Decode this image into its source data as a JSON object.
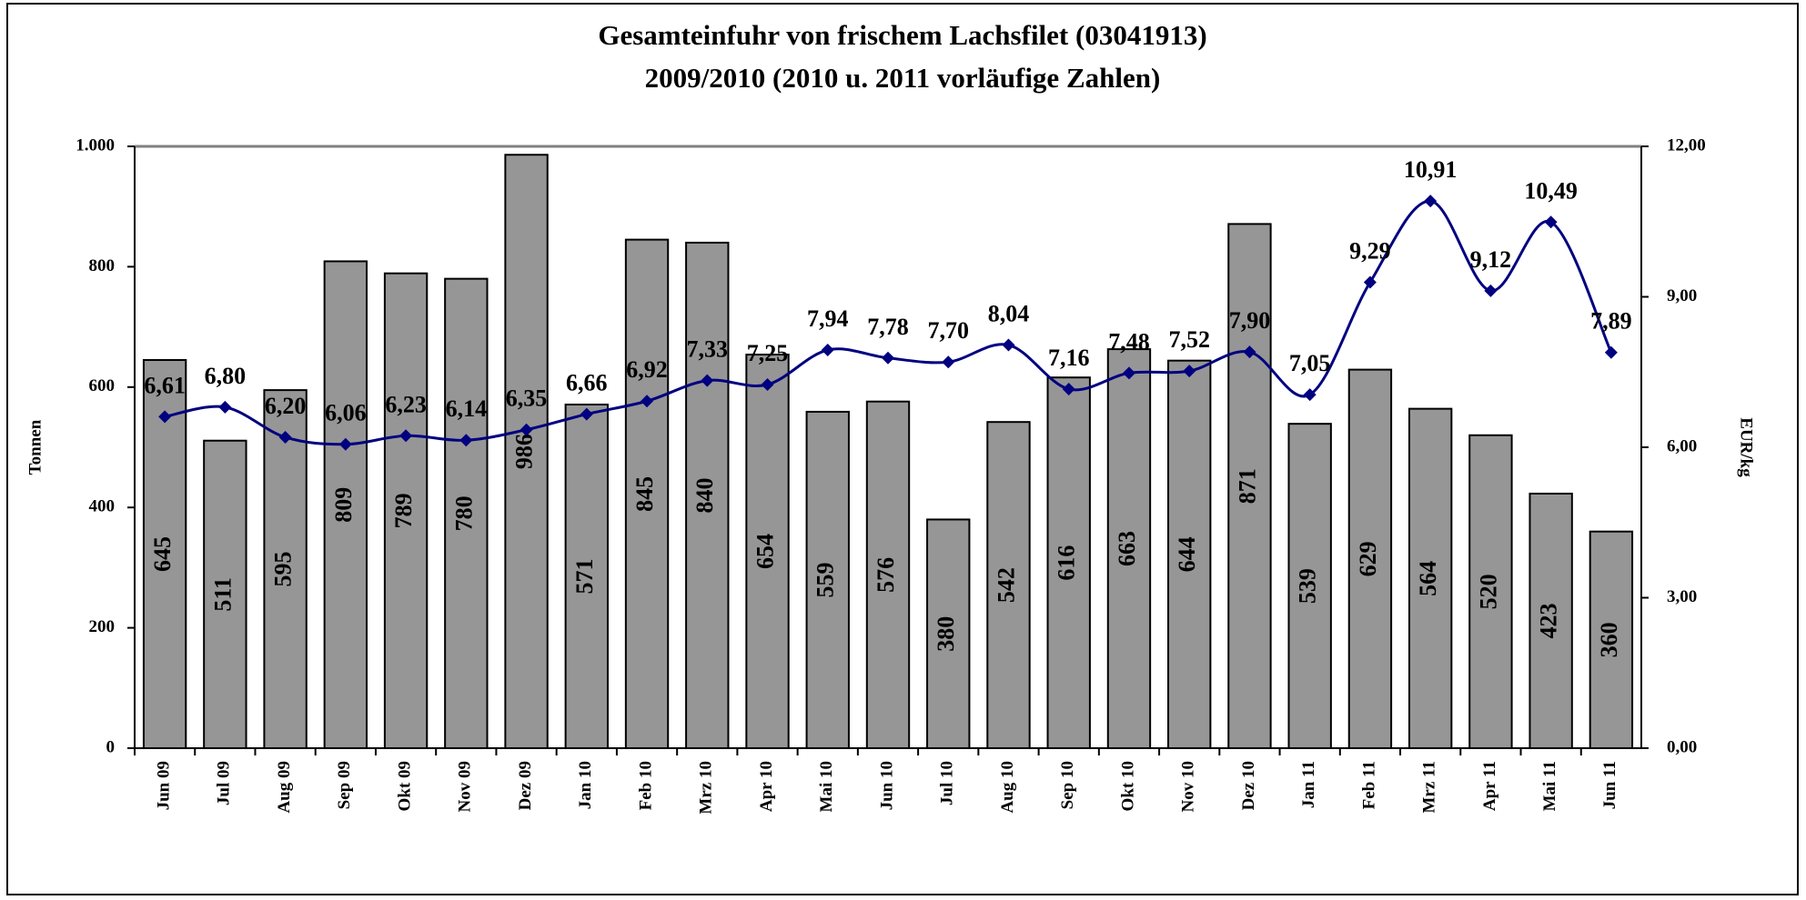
{
  "chart_data": {
    "type": "bar",
    "title": "Gesamteinfuhr von frischem Lachsfilet (03041913)",
    "subtitle": "2009/2010 (2010 u. 2011 vorläufige Zahlen)",
    "y_label": "Tonnen",
    "y2_label": "EUR/kg",
    "categories": [
      "Jun 09",
      "Jul 09",
      "Aug 09",
      "Sep 09",
      "Okt 09",
      "Nov 09",
      "Dez 09",
      "Jan 10",
      "Feb 10",
      "Mrz 10",
      "Apr 10",
      "Mai 10",
      "Jun 10",
      "Jul 10",
      "Aug 10",
      "Sep 10",
      "Okt 10",
      "Nov 10",
      "Dez 10",
      "Jan 11",
      "Feb 11",
      "Mrz 11",
      "Apr 11",
      "Mai 11",
      "Jun 11"
    ],
    "series": [
      {
        "type": "bar",
        "color": "#969696",
        "values": [
          645,
          511,
          595,
          809,
          789,
          780,
          986,
          571,
          845,
          840,
          654,
          559,
          576,
          380,
          542,
          616,
          663,
          644,
          871,
          539,
          629,
          564,
          520,
          423,
          360
        ]
      },
      {
        "type": "line",
        "axis": "y2",
        "color": "#000080",
        "values": [
          6.61,
          6.8,
          6.2,
          6.06,
          6.23,
          6.14,
          6.35,
          6.66,
          6.92,
          7.33,
          7.25,
          7.94,
          7.78,
          7.7,
          8.04,
          7.16,
          7.48,
          7.52,
          7.9,
          7.05,
          9.29,
          10.91,
          9.12,
          10.49,
          7.89
        ],
        "value_labels": [
          "6,61",
          "6,80",
          "6,20",
          "6,06",
          "6,23",
          "6,14",
          "6,35",
          "6,66",
          "6,92",
          "7,33",
          "7,25",
          "7,94",
          "7,78",
          "7,70",
          "8,04",
          "7,16",
          "7,48",
          "7,52",
          "7,90",
          "7,05",
          "9,29",
          "10,91",
          "9,12",
          "10,49",
          "7,89"
        ]
      }
    ],
    "ylim": [
      0,
      1000
    ],
    "yticks": [
      0,
      200,
      400,
      600,
      800,
      {
        "value": 1000,
        "label": "1.000"
      }
    ],
    "y2lim": [
      0,
      12
    ],
    "y2ticks": [
      {
        "value": 0,
        "label": "0,00"
      },
      {
        "value": 3,
        "label": "3,00"
      },
      {
        "value": 6,
        "label": "6,00"
      },
      {
        "value": 9,
        "label": "9,00"
      },
      {
        "value": 12,
        "label": "12,00"
      }
    ]
  }
}
